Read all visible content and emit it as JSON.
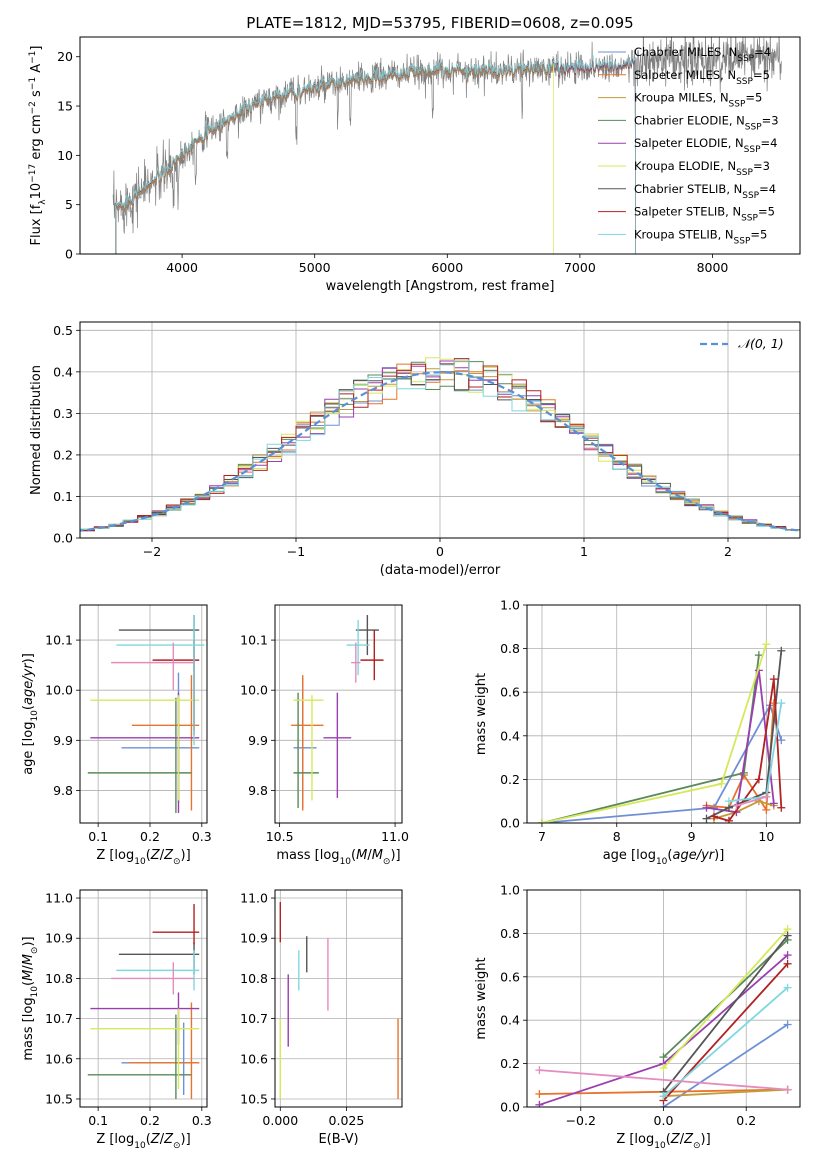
{
  "figure": {
    "title": "PLATE=1812, MJD=53795, FIBERID=0608, z=0.095"
  },
  "colors": {
    "Chabrier MILES": "#6f8fd6",
    "Salpeter MILES": "#e8732c",
    "Kroupa MILES": "#c49a3a",
    "Chabrier ELODIE": "#5a8a5a",
    "Salpeter ELODIE": "#9a3fb0",
    "Kroupa ELODIE": "#d7e85a",
    "Chabrier STELIB": "#555555",
    "Salpeter STELIB": "#b22222",
    "Kroupa STELIB": "#7fd8e0",
    "data": "#808080",
    "pink": "#e38cc0",
    "gaussian": "#5b8fd6"
  },
  "chart_data": [
    {
      "id": "spectrum",
      "type": "line",
      "title": "PLATE=1812, MJD=53795, FIBERID=0608, z=0.095",
      "xlabel": "wavelength [Angstrom, rest frame]",
      "ylabel_parts": [
        "Flux [f",
        "λ",
        "10",
        "−17",
        " erg cm",
        "−2",
        " s",
        "−1",
        " A",
        "−1",
        "]"
      ],
      "xlim": [
        3230,
        8660
      ],
      "ylim": [
        0,
        22
      ],
      "xticks": [
        4000,
        5000,
        6000,
        7000,
        8000
      ],
      "yticks": [
        0,
        5,
        10,
        15,
        20
      ],
      "continuum_x": [
        3500,
        3600,
        3700,
        3800,
        3900,
        4000,
        4100,
        4200,
        4400,
        4600,
        4800,
        5000,
        5200,
        5400,
        5600,
        5800,
        6000,
        6200,
        6400,
        6600,
        6800,
        7000,
        7200,
        7400,
        7600,
        7800,
        8000,
        8200,
        8500
      ],
      "continuum_y": [
        4.5,
        5.5,
        6.5,
        7.5,
        8.5,
        10.0,
        11.5,
        12.5,
        14.0,
        15.5,
        16.3,
        16.8,
        17.3,
        17.8,
        18.2,
        18.4,
        18.6,
        18.6,
        18.5,
        18.7,
        18.8,
        18.9,
        19.0,
        19.2,
        19.4,
        19.5,
        19.8,
        19.9,
        20.0
      ],
      "legend": [
        {
          "name": "Chabrier MILES",
          "n": "4"
        },
        {
          "name": "Salpeter MILES",
          "n": "5"
        },
        {
          "name": "Kroupa MILES",
          "n": "5"
        },
        {
          "name": "Chabrier ELODIE",
          "n": "3"
        },
        {
          "name": "Salpeter ELODIE",
          "n": "4"
        },
        {
          "name": "Kroupa ELODIE",
          "n": "3"
        },
        {
          "name": "Chabrier STELIB",
          "n": "4"
        },
        {
          "name": "Salpeter STELIB",
          "n": "5"
        },
        {
          "name": "Kroupa STELIB",
          "n": "5"
        }
      ],
      "legend_placement": "upper-right"
    },
    {
      "id": "residuals",
      "type": "histogram",
      "xlabel": "(data-model)/error",
      "ylabel": "Normed distribution",
      "xlim": [
        -2.5,
        2.5
      ],
      "ylim": [
        0,
        0.52
      ],
      "xticks": [
        -2,
        -1,
        0,
        1,
        2
      ],
      "yticks": [
        0.0,
        0.1,
        0.2,
        0.3,
        0.4,
        0.5
      ],
      "grid": true,
      "bin_width": 0.1,
      "reference_curve": "gaussian mean 0, sigma 1",
      "legend": [
        "𝒩(0, 1)"
      ],
      "legend_placement": "upper-right"
    },
    {
      "id": "age_vs_Z",
      "type": "errorbar",
      "xlabel": "Z [log10(Z/Z⊙)]",
      "ylabel": "age  [log10(age/yr)]",
      "xlim": [
        0.065,
        0.31
      ],
      "ylim": [
        9.735,
        10.17
      ],
      "xticks": [
        0.1,
        0.2,
        0.3
      ],
      "yticks": [
        9.8,
        9.9,
        10.0,
        10.1
      ],
      "grid": true,
      "points": [
        {
          "c": "Chabrier MILES",
          "x": 0.255,
          "xerr": [
            0.11,
            0.04
          ],
          "y": 9.885,
          "yerr": [
            0.11,
            0.15
          ]
        },
        {
          "c": "Salpeter MILES",
          "x": 0.28,
          "xerr": [
            0.115,
            0.015
          ],
          "y": 9.93,
          "yerr": [
            0.17,
            0.1
          ]
        },
        {
          "c": "Chabrier ELODIE",
          "x": 0.25,
          "xerr": [
            0.17,
            0.03
          ],
          "y": 9.835,
          "yerr": [
            0.08,
            0.15
          ]
        },
        {
          "c": "Salpeter ELODIE",
          "x": 0.255,
          "xerr": [
            0.17,
            0.04
          ],
          "y": 9.905,
          "yerr": [
            0.15,
            0.09
          ]
        },
        {
          "c": "Kroupa ELODIE",
          "x": 0.255,
          "xerr": [
            0.17,
            0.04
          ],
          "y": 9.98,
          "yerr": [
            0.2,
            0.01
          ]
        },
        {
          "c": "Chabrier STELIB",
          "x": 0.285,
          "xerr": [
            0.145,
            0.01
          ],
          "y": 10.12,
          "yerr": [
            0.2,
            0.03
          ]
        },
        {
          "c": "Salpeter STELIB",
          "x": 0.285,
          "xerr": [
            0.08,
            0.01
          ],
          "y": 10.06,
          "yerr": [
            0.15,
            0.04
          ]
        },
        {
          "c": "Kroupa STELIB",
          "x": 0.285,
          "xerr": [
            0.15,
            0.02
          ],
          "y": 10.09,
          "yerr": [
            0.2,
            0.06
          ]
        },
        {
          "c": "pink",
          "x": 0.245,
          "xerr": [
            0.12,
            0.04
          ],
          "y": 10.055,
          "yerr": [
            0.055,
            0.04
          ]
        }
      ]
    },
    {
      "id": "age_vs_mass",
      "type": "errorbar",
      "xlabel": "mass [log10(M/M⊙)]",
      "ylabel": "",
      "xlim": [
        10.48,
        11.03
      ],
      "ylim": [
        9.735,
        10.17
      ],
      "xticks": [
        10.5,
        11.0
      ],
      "yticks": [
        9.8,
        9.9,
        10.0,
        10.1
      ],
      "grid": true,
      "points": [
        {
          "c": "Chabrier MILES",
          "x": 10.6,
          "xerr": [
            0.04,
            0.06
          ],
          "y": 9.885,
          "yerr": [
            0.12,
            0.14
          ]
        },
        {
          "c": "Salpeter MILES",
          "x": 10.6,
          "xerr": [
            0.05,
            0.09
          ],
          "y": 9.93,
          "yerr": [
            0.17,
            0.1
          ]
        },
        {
          "c": "Chabrier ELODIE",
          "x": 10.58,
          "xerr": [
            0.02,
            0.09
          ],
          "y": 9.835,
          "yerr": [
            0.07,
            0.16
          ]
        },
        {
          "c": "Salpeter ELODIE",
          "x": 10.75,
          "xerr": [
            0.06,
            0.06
          ],
          "y": 9.905,
          "yerr": [
            0.12,
            0.09
          ]
        },
        {
          "c": "Kroupa ELODIE",
          "x": 10.64,
          "xerr": [
            0.08,
            0.05
          ],
          "y": 9.98,
          "yerr": [
            0.2,
            0.01
          ]
        },
        {
          "c": "Chabrier STELIB",
          "x": 10.88,
          "xerr": [
            0.05,
            0.05
          ],
          "y": 10.12,
          "yerr": [
            0.05,
            0.03
          ]
        },
        {
          "c": "Salpeter STELIB",
          "x": 10.91,
          "xerr": [
            0.06,
            0.04
          ],
          "y": 10.06,
          "yerr": [
            0.04,
            0.06
          ]
        },
        {
          "c": "Kroupa STELIB",
          "x": 10.84,
          "xerr": [
            0.05,
            0.05
          ],
          "y": 10.09,
          "yerr": [
            0.06,
            0.05
          ]
        },
        {
          "c": "pink",
          "x": 10.83,
          "xerr": [
            0.02,
            0.02
          ],
          "y": 10.055,
          "yerr": [
            0.04,
            0.04
          ]
        }
      ]
    },
    {
      "id": "weight_vs_age",
      "type": "line",
      "xlabel": "age  [log10(age/yr)]",
      "ylabel": "mass weight",
      "xlim": [
        6.8,
        10.45
      ],
      "ylim": [
        0,
        1.0
      ],
      "xticks": [
        7,
        8,
        9,
        10
      ],
      "yticks": [
        0.0,
        0.2,
        0.4,
        0.6,
        0.8,
        1.0
      ],
      "grid": true,
      "series": [
        {
          "c": "Chabrier MILES",
          "x": [
            7.0,
            9.3,
            10.05,
            10.2
          ],
          "y": [
            0.0,
            0.07,
            0.54,
            0.38
          ]
        },
        {
          "c": "Salpeter MILES",
          "x": [
            9.2,
            9.5,
            9.7,
            10.0,
            10.1
          ],
          "y": [
            0.08,
            0.07,
            0.22,
            0.06,
            0.55
          ]
        },
        {
          "c": "Kroupa MILES",
          "x": [
            9.3,
            9.6,
            9.9,
            10.1
          ],
          "y": [
            0.02,
            0.05,
            0.1,
            0.08
          ]
        },
        {
          "c": "Chabrier ELODIE",
          "x": [
            7.0,
            9.7,
            9.9
          ],
          "y": [
            0.0,
            0.23,
            0.77
          ]
        },
        {
          "c": "Salpeter ELODIE",
          "x": [
            9.2,
            9.6,
            9.9,
            10.1
          ],
          "y": [
            0.07,
            0.05,
            0.7,
            0.09
          ]
        },
        {
          "c": "Kroupa ELODIE",
          "x": [
            7.0,
            9.4,
            10.0
          ],
          "y": [
            0.0,
            0.18,
            0.82
          ]
        },
        {
          "c": "Chabrier STELIB",
          "x": [
            9.2,
            9.5,
            10.0,
            10.2
          ],
          "y": [
            0.02,
            0.07,
            0.14,
            0.79
          ]
        },
        {
          "c": "Salpeter STELIB",
          "x": [
            9.3,
            9.5,
            9.9,
            10.1,
            10.2
          ],
          "y": [
            0.03,
            0.01,
            0.2,
            0.66,
            0.07
          ]
        },
        {
          "c": "Kroupa STELIB",
          "x": [
            9.5,
            10.0,
            10.2
          ],
          "y": [
            0.1,
            0.12,
            0.55
          ]
        },
        {
          "c": "pink",
          "x": [
            9.6,
            10.0
          ],
          "y": [
            0.08,
            0.12
          ]
        }
      ]
    },
    {
      "id": "mass_vs_Z",
      "type": "errorbar",
      "xlabel": "Z [log10(Z/Z⊙)]",
      "ylabel": "mass [log10(M/M⊙)]",
      "xlim": [
        0.065,
        0.31
      ],
      "ylim": [
        10.48,
        11.02
      ],
      "xticks": [
        0.1,
        0.2,
        0.3
      ],
      "yticks": [
        10.5,
        10.6,
        10.7,
        10.8,
        10.9,
        11.0
      ],
      "grid": true,
      "points": [
        {
          "c": "Chabrier MILES",
          "x": 0.265,
          "xerr": [
            0.12,
            0.03
          ],
          "y": 10.59,
          "yerr": [
            0.08,
            0.1
          ]
        },
        {
          "c": "Salpeter MILES",
          "x": 0.28,
          "xerr": [
            0.12,
            0.015
          ],
          "y": 10.59,
          "yerr": [
            0.09,
            0.15
          ]
        },
        {
          "c": "Chabrier ELODIE",
          "x": 0.25,
          "xerr": [
            0.17,
            0.03
          ],
          "y": 10.56,
          "yerr": [
            0.06,
            0.15
          ]
        },
        {
          "c": "Salpeter ELODIE",
          "x": 0.255,
          "xerr": [
            0.17,
            0.04
          ],
          "y": 10.725,
          "yerr": [
            0.09,
            0.04
          ]
        },
        {
          "c": "Kroupa ELODIE",
          "x": 0.255,
          "xerr": [
            0.17,
            0.04
          ],
          "y": 10.675,
          "yerr": [
            0.15,
            0.05
          ]
        },
        {
          "c": "Chabrier STELIB",
          "x": 0.285,
          "xerr": [
            0.145,
            0.01
          ],
          "y": 10.86,
          "yerr": [
            0.05,
            0.03
          ]
        },
        {
          "c": "Salpeter STELIB",
          "x": 0.285,
          "xerr": [
            0.08,
            0.01
          ],
          "y": 10.915,
          "yerr": [
            0.03,
            0.07
          ]
        },
        {
          "c": "Kroupa STELIB",
          "x": 0.285,
          "xerr": [
            0.15,
            0.01
          ],
          "y": 10.82,
          "yerr": [
            0.05,
            0.05
          ]
        },
        {
          "c": "pink",
          "x": 0.245,
          "xerr": [
            0.12,
            0.04
          ],
          "y": 10.8,
          "yerr": [
            0.04,
            0.04
          ]
        }
      ]
    },
    {
      "id": "mass_vs_EBV",
      "type": "errorbar",
      "xlabel": "E(B-V)",
      "ylabel": "",
      "xlim": [
        -0.002,
        0.046
      ],
      "ylim": [
        10.48,
        11.02
      ],
      "xticks": [
        0.0,
        0.025
      ],
      "yticks": [
        10.5,
        10.6,
        10.7,
        10.8,
        10.9,
        11.0
      ],
      "grid": true,
      "points": [
        {
          "c": "Kroupa ELODIE",
          "x": 0.0,
          "y": 10.6,
          "yerr": [
            0.1,
            0.1
          ]
        },
        {
          "c": "Salpeter STELIB",
          "x": 0.0,
          "y": 10.94,
          "yerr": [
            0.05,
            0.05
          ]
        },
        {
          "c": "Salpeter ELODIE",
          "x": 0.003,
          "y": 10.72,
          "yerr": [
            0.09,
            0.09
          ]
        },
        {
          "c": "Kroupa STELIB",
          "x": 0.007,
          "y": 10.82,
          "yerr": [
            0.05,
            0.05
          ]
        },
        {
          "c": "Chabrier STELIB",
          "x": 0.01,
          "y": 10.86,
          "yerr": [
            0.045,
            0.045
          ]
        },
        {
          "c": "pink",
          "x": 0.018,
          "y": 10.81,
          "yerr": [
            0.09,
            0.09
          ]
        },
        {
          "c": "Salpeter MILES",
          "x": 0.0445,
          "y": 10.6,
          "yerr": [
            0.1,
            0.1
          ]
        }
      ]
    },
    {
      "id": "weight_vs_Z",
      "type": "line",
      "xlabel": "Z [log10(Z/Z⊙)]",
      "ylabel": "mass weight",
      "xlim": [
        -0.33,
        0.33
      ],
      "ylim": [
        0,
        1.0
      ],
      "xticks": [
        -0.2,
        0.0,
        0.2
      ],
      "yticks": [
        0.0,
        0.2,
        0.4,
        0.6,
        0.8,
        1.0
      ],
      "grid": true,
      "series": [
        {
          "c": "Chabrier MILES",
          "x": [
            0.0,
            0.3
          ],
          "y": [
            0.0,
            0.38
          ]
        },
        {
          "c": "Salpeter MILES",
          "x": [
            -0.3,
            0.3
          ],
          "y": [
            0.06,
            0.08
          ]
        },
        {
          "c": "Kroupa MILES",
          "x": [
            0.0,
            0.3
          ],
          "y": [
            0.05,
            0.08
          ]
        },
        {
          "c": "Chabrier ELODIE",
          "x": [
            0.0,
            0.3
          ],
          "y": [
            0.23,
            0.77
          ]
        },
        {
          "c": "Salpeter ELODIE",
          "x": [
            -0.3,
            0.0,
            0.3
          ],
          "y": [
            0.01,
            0.2,
            0.7
          ]
        },
        {
          "c": "Kroupa ELODIE",
          "x": [
            0.0,
            0.3
          ],
          "y": [
            0.18,
            0.82
          ]
        },
        {
          "c": "Chabrier STELIB",
          "x": [
            0.0,
            0.3
          ],
          "y": [
            0.07,
            0.79
          ]
        },
        {
          "c": "Salpeter STELIB",
          "x": [
            0.0,
            0.3
          ],
          "y": [
            0.03,
            0.66
          ]
        },
        {
          "c": "Kroupa STELIB",
          "x": [
            0.0,
            0.3
          ],
          "y": [
            0.05,
            0.55
          ]
        },
        {
          "c": "pink",
          "x": [
            -0.3,
            0.3
          ],
          "y": [
            0.17,
            0.08
          ]
        }
      ]
    }
  ]
}
